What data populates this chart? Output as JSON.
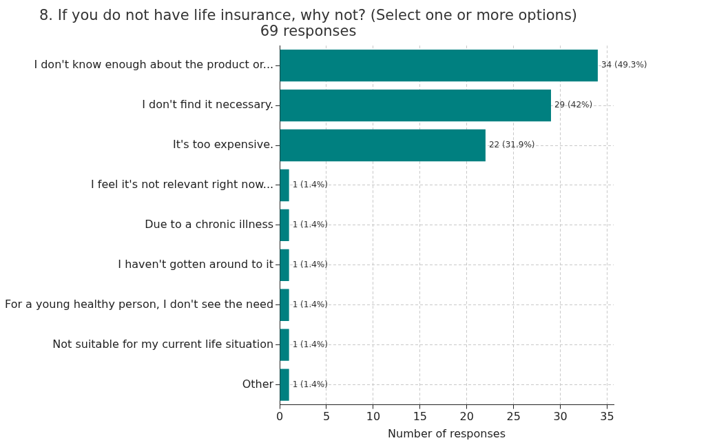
{
  "chart_data": {
    "type": "bar",
    "orientation": "horizontal",
    "title": "8. If you do not have life insurance, why not? (Select one or more options)",
    "subtitle": "69 responses",
    "xlabel": "Number of responses",
    "categories": [
      "I don't know enough about the product or...",
      "I don't find it necessary.",
      "It's too expensive.",
      "I feel it's not relevant right now...",
      "Due to a chronic illness",
      "I haven't gotten around to it",
      "For a young healthy person, I don't see the need",
      "Not suitable for my current life situation",
      "Other"
    ],
    "values": [
      34,
      29,
      22,
      1,
      1,
      1,
      1,
      1,
      1
    ],
    "value_labels": [
      "34 (49.3%)",
      "29 (42%)",
      "22 (31.9%)",
      "1 (1.4%)",
      "1 (1.4%)",
      "1 (1.4%)",
      "1 (1.4%)",
      "1 (1.4%)",
      "1 (1.4%)"
    ],
    "color": "#008080",
    "xlim": [
      0,
      35.7
    ],
    "xticks": [
      0,
      5,
      10,
      15,
      20,
      25,
      30,
      35
    ],
    "grid": true,
    "legend": false
  }
}
